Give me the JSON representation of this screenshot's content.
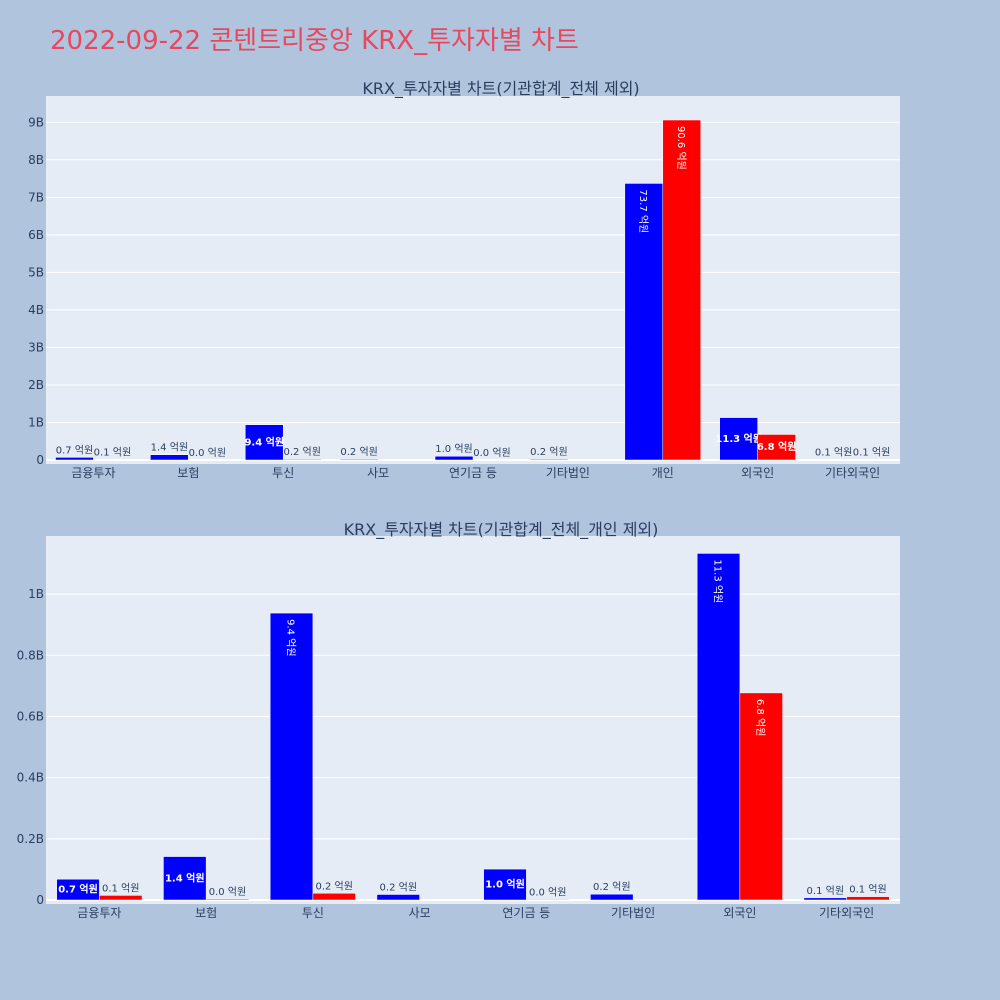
{
  "page_title": "2022-09-22 콘텐트리중앙 KRX_투자자별 차트",
  "colors": {
    "page_bg": "#b0c4de",
    "plot_bg": "#e5ecf6",
    "title": "#e8485f",
    "text": "#2a3f5f",
    "buy": "#0000ff",
    "sell": "#ff0000"
  },
  "chart_data": [
    {
      "type": "bar",
      "title": "KRX_투자자별 차트(기관합계_전체 제외)",
      "categories": [
        "금융투자",
        "보험",
        "투신",
        "사모",
        "연기금 등",
        "기타법인",
        "개인",
        "외국인",
        "기타외국인"
      ],
      "series": [
        {
          "values": [
            0.07,
            0.14,
            0.94,
            0.02,
            0.1,
            0.02,
            7.37,
            1.13,
            0.01
          ],
          "labels": [
            "0.7 억원",
            "1.4 억원",
            "9.4 억원",
            "0.2 억원",
            "1.0 억원",
            "0.2 억원",
            "73.7 억원",
            "11.3 억원",
            "0.1 억원"
          ]
        },
        {
          "values": [
            0.01,
            0.0,
            0.02,
            null,
            0.0,
            null,
            9.06,
            0.68,
            0.01
          ],
          "labels": [
            "0.1 억원",
            "0.0 억원",
            "0.2 억원",
            "",
            "0.0 억원",
            "",
            "90.6 억원",
            "6.8 억원",
            "0.1 억원"
          ]
        }
      ],
      "yticks": [
        0,
        1,
        2,
        3,
        4,
        5,
        6,
        7,
        8,
        9
      ],
      "yticklabels": [
        "0",
        "1B",
        "2B",
        "3B",
        "4B",
        "5B",
        "6B",
        "7B",
        "8B",
        "9B"
      ],
      "ylim": [
        0,
        9.7
      ],
      "xlabel": "",
      "ylabel": "",
      "grid": true
    },
    {
      "type": "bar",
      "title": "KRX_투자자별 차트(기관합계_전체_개인 제외)",
      "categories": [
        "금융투자",
        "보험",
        "투신",
        "사모",
        "연기금 등",
        "기타법인",
        "외국인",
        "기타외국인"
      ],
      "series": [
        {
          "values": [
            0.068,
            0.142,
            0.938,
            0.018,
            0.101,
            0.019,
            1.133,
            0.007
          ],
          "labels": [
            "0.7 억원",
            "1.4 억원",
            "9.4 억원",
            "0.2 억원",
            "1.0 억원",
            "0.2 억원",
            "11.3 억원",
            "0.1 억원"
          ]
        },
        {
          "values": [
            0.015,
            0.003,
            0.022,
            null,
            0.002,
            null,
            0.677,
            0.011
          ],
          "labels": [
            "0.1 억원",
            "0.0 억원",
            "0.2 억원",
            "",
            "0.0 억원",
            "",
            "6.8 억원",
            "0.1 억원"
          ]
        }
      ],
      "yticks": [
        0,
        0.2,
        0.4,
        0.6,
        0.8,
        1
      ],
      "yticklabels": [
        "0",
        "0.2B",
        "0.4B",
        "0.6B",
        "0.8B",
        "1B"
      ],
      "ylim": [
        0,
        1.19
      ],
      "xlabel": "",
      "ylabel": "",
      "grid": true
    }
  ]
}
